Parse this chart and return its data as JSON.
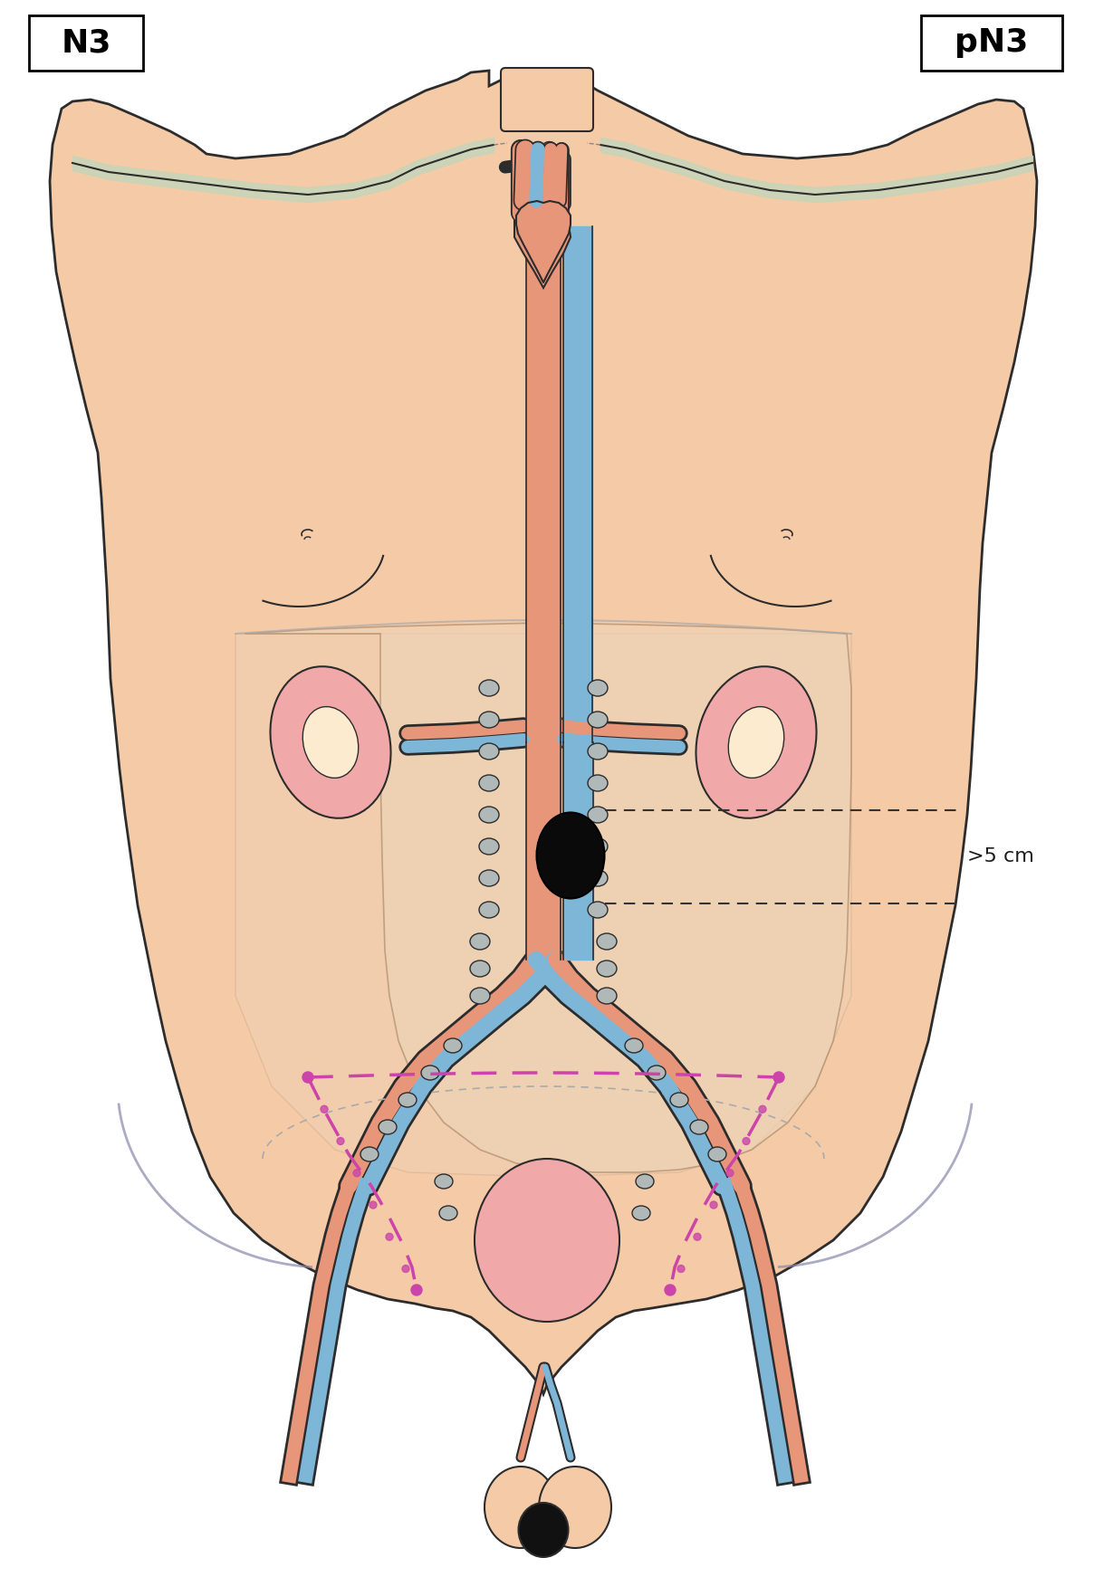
{
  "skin_color": "#F5CBA7",
  "skin_light": "#FDEBD0",
  "skin_outline": "#2C2C2C",
  "vein_blue": "#7EB6D8",
  "artery_red": "#E8967A",
  "kidney_color": "#F0A8A8",
  "lymph_color": "#B0B8B8",
  "lymph_dark": "#1C1C1C",
  "vessel_outline": "#2C2C2C",
  "abdominal_bg": "#E8D5C0",
  "purple_dashed": "#CC44AA",
  "annotation_color": "#1C1C1C",
  "label_N3": "N3",
  "label_pN3": "pN3",
  "label_size": ">5 cm",
  "title": "",
  "fig_width": 12.08,
  "fig_height": 17.63
}
